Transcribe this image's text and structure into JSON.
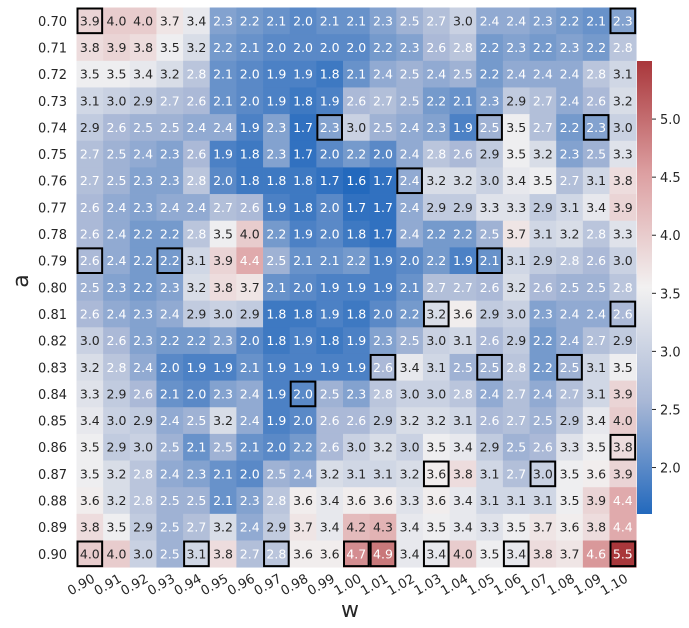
{
  "chart_data": {
    "type": "heatmap",
    "title": "",
    "xlabel": "w",
    "ylabel": "a",
    "x": [
      "0.90",
      "0.91",
      "0.92",
      "0.93",
      "0.94",
      "0.95",
      "0.96",
      "0.97",
      "0.98",
      "0.99",
      "1.00",
      "1.01",
      "1.02",
      "1.03",
      "1.04",
      "1.05",
      "1.06",
      "1.07",
      "1.08",
      "1.09",
      "1.10"
    ],
    "y": [
      "0.70",
      "0.71",
      "0.72",
      "0.73",
      "0.74",
      "0.75",
      "0.76",
      "0.77",
      "0.78",
      "0.79",
      "0.80",
      "0.81",
      "0.82",
      "0.83",
      "0.84",
      "0.85",
      "0.86",
      "0.87",
      "0.88",
      "0.89",
      "0.90"
    ],
    "values": [
      [
        3.9,
        4.0,
        4.0,
        3.7,
        3.4,
        2.3,
        2.2,
        2.1,
        2.0,
        2.1,
        2.1,
        2.3,
        2.5,
        2.7,
        3.0,
        2.4,
        2.4,
        2.3,
        2.2,
        2.1,
        2.3
      ],
      [
        3.8,
        3.9,
        3.8,
        3.5,
        3.2,
        2.2,
        2.1,
        2.0,
        2.0,
        2.0,
        2.0,
        2.2,
        2.3,
        2.6,
        2.8,
        2.2,
        2.3,
        2.2,
        2.3,
        2.2,
        2.8
      ],
      [
        3.5,
        3.5,
        3.4,
        3.2,
        2.8,
        2.1,
        2.0,
        1.9,
        1.9,
        1.8,
        2.1,
        2.4,
        2.5,
        2.4,
        2.5,
        2.2,
        2.4,
        2.4,
        2.4,
        2.8,
        3.1
      ],
      [
        3.1,
        3.0,
        2.9,
        2.7,
        2.6,
        2.1,
        2.0,
        1.9,
        1.8,
        1.9,
        2.6,
        2.7,
        2.5,
        2.2,
        2.1,
        2.3,
        2.9,
        2.7,
        2.4,
        2.6,
        3.2
      ],
      [
        2.9,
        2.6,
        2.5,
        2.5,
        2.4,
        2.4,
        1.9,
        2.3,
        1.7,
        2.3,
        3.0,
        2.5,
        2.4,
        2.3,
        1.9,
        2.5,
        3.5,
        2.7,
        2.2,
        2.3,
        3.0
      ],
      [
        2.7,
        2.5,
        2.4,
        2.3,
        2.6,
        1.9,
        1.8,
        2.3,
        1.7,
        2.0,
        2.2,
        2.0,
        2.4,
        2.8,
        2.6,
        2.9,
        3.5,
        3.2,
        2.3,
        2.5,
        3.3
      ],
      [
        2.7,
        2.5,
        2.3,
        2.3,
        2.8,
        2.0,
        1.8,
        1.8,
        1.8,
        1.7,
        1.6,
        1.7,
        2.4,
        3.2,
        3.2,
        3.0,
        3.4,
        3.5,
        2.7,
        3.1,
        3.8
      ],
      [
        2.6,
        2.4,
        2.3,
        2.4,
        2.4,
        2.7,
        2.6,
        1.9,
        1.8,
        2.0,
        1.7,
        1.7,
        2.4,
        2.9,
        2.9,
        3.3,
        3.3,
        2.9,
        3.1,
        3.4,
        3.9
      ],
      [
        2.6,
        2.4,
        2.2,
        2.2,
        2.8,
        3.5,
        4.0,
        2.2,
        1.9,
        2.0,
        1.8,
        1.7,
        2.4,
        2.2,
        2.2,
        2.5,
        3.7,
        3.1,
        3.2,
        2.8,
        3.3
      ],
      [
        2.6,
        2.4,
        2.2,
        2.2,
        3.1,
        3.9,
        4.4,
        2.5,
        2.1,
        2.1,
        2.2,
        1.9,
        2.0,
        2.2,
        1.9,
        2.1,
        3.1,
        2.9,
        2.8,
        2.6,
        3.0
      ],
      [
        2.5,
        2.3,
        2.2,
        2.3,
        3.2,
        3.8,
        3.7,
        2.1,
        2.0,
        1.9,
        1.9,
        1.9,
        2.1,
        2.7,
        2.7,
        2.6,
        3.2,
        2.6,
        2.5,
        2.5,
        2.8
      ],
      [
        2.6,
        2.4,
        2.3,
        2.4,
        2.9,
        3.0,
        2.9,
        1.8,
        1.8,
        1.9,
        1.8,
        2.0,
        2.2,
        3.2,
        3.6,
        2.9,
        3.0,
        2.3,
        2.4,
        2.4,
        2.6
      ],
      [
        3.0,
        2.6,
        2.3,
        2.2,
        2.2,
        2.3,
        2.0,
        1.8,
        1.9,
        1.8,
        1.9,
        2.3,
        2.5,
        3.0,
        3.1,
        2.6,
        2.9,
        2.2,
        2.4,
        2.7,
        2.9
      ],
      [
        3.2,
        2.8,
        2.4,
        2.0,
        1.9,
        1.9,
        2.1,
        1.9,
        1.9,
        1.9,
        1.9,
        2.6,
        3.4,
        3.1,
        2.5,
        2.5,
        2.8,
        2.2,
        2.5,
        3.1,
        3.5
      ],
      [
        3.3,
        2.9,
        2.6,
        2.1,
        2.0,
        2.3,
        2.4,
        1.9,
        2.0,
        2.5,
        2.3,
        2.8,
        3.0,
        3.0,
        2.8,
        2.4,
        2.7,
        2.4,
        2.7,
        3.1,
        3.9
      ],
      [
        3.4,
        3.0,
        2.9,
        2.4,
        2.5,
        3.2,
        2.4,
        1.9,
        2.0,
        2.6,
        2.6,
        2.9,
        3.2,
        3.2,
        3.1,
        2.6,
        2.7,
        2.5,
        2.9,
        3.4,
        4.0
      ],
      [
        3.5,
        2.9,
        3.0,
        2.5,
        2.1,
        2.5,
        2.1,
        2.0,
        2.2,
        2.6,
        3.0,
        3.2,
        3.0,
        3.5,
        3.4,
        2.9,
        2.5,
        2.6,
        3.3,
        3.5,
        3.8
      ],
      [
        3.5,
        3.2,
        2.8,
        2.4,
        2.3,
        2.1,
        2.0,
        2.5,
        2.4,
        3.2,
        3.1,
        3.1,
        3.2,
        3.6,
        3.8,
        3.1,
        2.7,
        3.0,
        3.5,
        3.6,
        3.9
      ],
      [
        3.6,
        3.2,
        2.8,
        2.5,
        2.5,
        2.1,
        2.3,
        2.8,
        3.6,
        3.4,
        3.6,
        3.6,
        3.3,
        3.6,
        3.4,
        3.1,
        3.1,
        3.1,
        3.5,
        3.9,
        4.4
      ],
      [
        3.8,
        3.5,
        2.9,
        2.5,
        2.7,
        3.2,
        2.4,
        2.9,
        3.7,
        3.4,
        4.2,
        4.3,
        3.4,
        3.5,
        3.4,
        3.3,
        3.5,
        3.7,
        3.6,
        3.8,
        4.4
      ],
      [
        4.0,
        4.0,
        3.0,
        2.5,
        3.1,
        3.8,
        2.7,
        2.8,
        3.6,
        3.6,
        4.7,
        4.9,
        3.4,
        3.4,
        4.0,
        3.5,
        3.4,
        3.8,
        3.7,
        4.6,
        5.5
      ]
    ],
    "highlighted_cells": [
      [
        0,
        0
      ],
      [
        0,
        20
      ],
      [
        4,
        9
      ],
      [
        4,
        15
      ],
      [
        4,
        19
      ],
      [
        6,
        12
      ],
      [
        9,
        0
      ],
      [
        9,
        3
      ],
      [
        9,
        15
      ],
      [
        11,
        13
      ],
      [
        11,
        20
      ],
      [
        13,
        11
      ],
      [
        13,
        15
      ],
      [
        13,
        18
      ],
      [
        14,
        8
      ],
      [
        16,
        20
      ],
      [
        17,
        13
      ],
      [
        17,
        17
      ],
      [
        20,
        0
      ],
      [
        20,
        4
      ],
      [
        20,
        7
      ],
      [
        20,
        10
      ],
      [
        20,
        11
      ],
      [
        20,
        13
      ],
      [
        20,
        16
      ],
      [
        20,
        20
      ]
    ],
    "colorbar": {
      "colormap": "vlag",
      "vmin": 1.6,
      "vmax": 5.5,
      "ticks": [
        2.0,
        2.5,
        3.0,
        3.5,
        4.0,
        4.5,
        5.0
      ],
      "tick_labels": [
        "2.0",
        "2.5",
        "3.0",
        "3.5",
        "4.0",
        "4.5",
        "5.0"
      ]
    },
    "grid": false,
    "legend": "colorbar-right"
  }
}
